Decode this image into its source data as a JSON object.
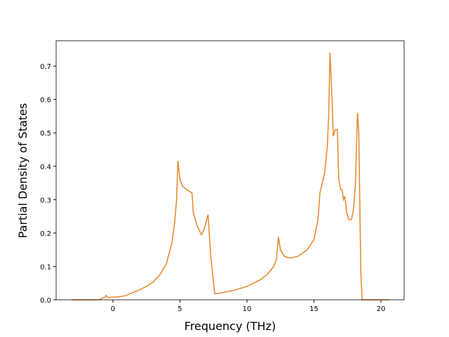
{
  "chart_data": {
    "type": "line",
    "x_label": "Frequency (THz)",
    "y_label": "Partial Density of States",
    "x": [
      -3.1,
      -1.0,
      -0.8,
      -0.6,
      -0.5,
      -0.4,
      0,
      0.5,
      1.0,
      1.5,
      2.0,
      2.5,
      3.0,
      3.5,
      3.8,
      4.0,
      4.4,
      4.6,
      4.75,
      4.85,
      5.0,
      5.2,
      5.5,
      5.9,
      6.0,
      6.3,
      6.6,
      6.8,
      7.0,
      7.1,
      7.3,
      7.6,
      8.0,
      9.0,
      10.0,
      11.0,
      11.5,
      12.0,
      12.2,
      12.35,
      12.5,
      12.8,
      13.2,
      13.8,
      14.5,
      15.0,
      15.3,
      15.45,
      15.8,
      16.0,
      16.1,
      16.2,
      16.35,
      16.45,
      16.6,
      16.75,
      16.85,
      17.0,
      17.1,
      17.2,
      17.3,
      17.45,
      17.6,
      17.8,
      17.95,
      18.1,
      18.25,
      18.35,
      18.5,
      18.6,
      20.6
    ],
    "series": [
      {
        "color": "#e8862a",
        "values": [
          0,
          0,
          0.005,
          0.008,
          0.013,
          0.007,
          0.008,
          0.009,
          0.013,
          0.022,
          0.03,
          0.04,
          0.053,
          0.075,
          0.095,
          0.11,
          0.17,
          0.23,
          0.3,
          0.416,
          0.36,
          0.34,
          0.33,
          0.32,
          0.26,
          0.22,
          0.195,
          0.21,
          0.24,
          0.255,
          0.13,
          0.018,
          0.02,
          0.028,
          0.04,
          0.06,
          0.075,
          0.1,
          0.12,
          0.188,
          0.15,
          0.13,
          0.125,
          0.13,
          0.15,
          0.18,
          0.24,
          0.32,
          0.38,
          0.46,
          0.55,
          0.74,
          0.6,
          0.49,
          0.51,
          0.51,
          0.36,
          0.33,
          0.33,
          0.3,
          0.31,
          0.26,
          0.24,
          0.24,
          0.27,
          0.35,
          0.56,
          0.5,
          0.08,
          0,
          0
        ]
      }
    ],
    "xlim": [
      -4.24,
      21.73
    ],
    "ylim": [
      0,
      0.776
    ],
    "xticks": [
      0,
      5,
      10,
      15,
      20
    ],
    "yticks": [
      {
        "value": 0,
        "label": "0.0"
      },
      0.1,
      0.2,
      0.3,
      0.4,
      0.5,
      0.6,
      0.7
    ]
  }
}
